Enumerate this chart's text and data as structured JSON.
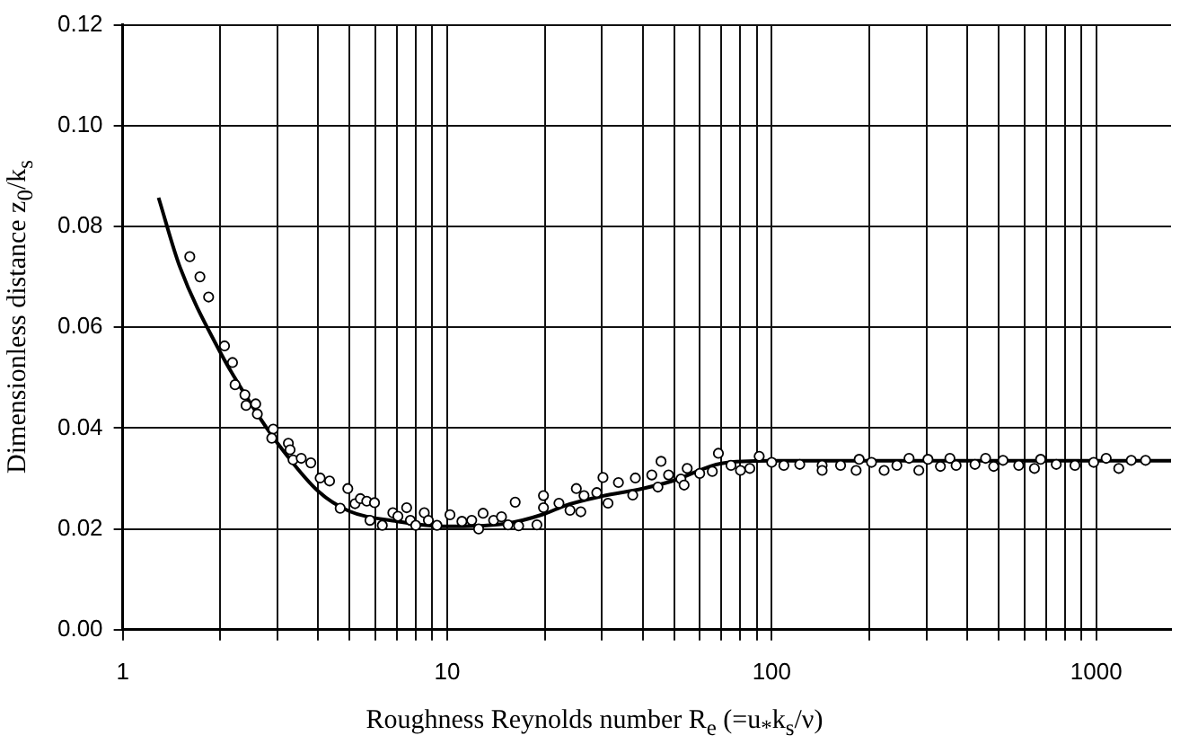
{
  "chart_data": {
    "type": "scatter",
    "xlabel": "Roughness Reynolds number R$_{e}$ (=u$_{*}$k$_{s}$/ν)",
    "ylabel": "Dimensionless distance  z$_{0}$/k$_{s}$",
    "log": "x",
    "grid": true,
    "xlim": [
      1,
      1700
    ],
    "ylim": [
      0,
      0.12
    ],
    "xticks": [
      1,
      {
        "value": 2,
        "label": null
      },
      {
        "value": 3,
        "label": null
      },
      {
        "value": 4,
        "label": null
      },
      {
        "value": 5,
        "label": null
      },
      {
        "value": 6,
        "label": null
      },
      {
        "value": 7,
        "label": null
      },
      {
        "value": 8,
        "label": null
      },
      {
        "value": 9,
        "label": null
      },
      10,
      {
        "value": 20,
        "label": null
      },
      {
        "value": 30,
        "label": null
      },
      {
        "value": 40,
        "label": null
      },
      {
        "value": 50,
        "label": null
      },
      {
        "value": 60,
        "label": null
      },
      {
        "value": 70,
        "label": null
      },
      {
        "value": 80,
        "label": null
      },
      {
        "value": 90,
        "label": null
      },
      100,
      {
        "value": 200,
        "label": null
      },
      {
        "value": 300,
        "label": null
      },
      {
        "value": 400,
        "label": null
      },
      {
        "value": 500,
        "label": null
      },
      {
        "value": 600,
        "label": null
      },
      {
        "value": 700,
        "label": null
      },
      {
        "value": 800,
        "label": null
      },
      {
        "value": 900,
        "label": null
      },
      1000
    ],
    "yticks": [
      {
        "value": 0,
        "label": "0.00"
      },
      {
        "value": 0.02,
        "label": "0.02"
      },
      {
        "value": 0.04,
        "label": "0.04"
      },
      {
        "value": 0.06,
        "label": "0.06"
      },
      {
        "value": 0.08,
        "label": "0.08"
      },
      {
        "value": 0.1,
        "label": "0.10"
      },
      {
        "value": 0.12,
        "label": "0.12"
      }
    ],
    "series": [
      {
        "type": "scatter",
        "marker": "circle",
        "color": "#000000",
        "x": [
          1.61,
          1.73,
          1.84,
          2.06,
          2.18,
          2.22,
          2.38,
          2.4,
          2.57,
          2.6,
          2.91,
          2.88,
          3.24,
          3.28,
          3.35,
          3.55,
          3.8,
          4.06,
          4.34,
          4.68,
          4.94,
          5.2,
          5.4,
          5.65,
          5.78,
          5.97,
          6.31,
          6.8,
          7.05,
          7.5,
          7.7,
          8.0,
          8.5,
          8.75,
          9.3,
          10.2,
          11.1,
          11.9,
          12.5,
          12.9,
          13.9,
          14.7,
          15.4,
          16.2,
          16.6,
          18.9,
          19.8,
          19.8,
          22.1,
          23.9,
          25.0,
          25.8,
          26.4,
          28.9,
          30.2,
          31.3,
          33.7,
          37.3,
          38.0,
          42.7,
          44.6,
          45.6,
          48.1,
          52.5,
          53.7,
          54.9,
          60.0,
          65.6,
          68.5,
          74.9,
          80.1,
          85.6,
          91.5,
          100,
          109,
          122,
          143,
          143,
          163,
          182,
          186,
          203,
          222,
          243,
          265,
          284,
          303,
          331,
          354,
          370,
          423,
          456,
          483,
          516,
          577,
          645,
          674,
          753,
          860,
          982,
          1073,
          1173,
          1282,
          1419
        ],
        "values": [
          0.074,
          0.07,
          0.066,
          0.0563,
          0.053,
          0.0486,
          0.0466,
          0.0445,
          0.0448,
          0.0428,
          0.0398,
          0.038,
          0.037,
          0.0357,
          0.0337,
          0.034,
          0.0331,
          0.0301,
          0.0295,
          0.0241,
          0.028,
          0.025,
          0.026,
          0.0255,
          0.0217,
          0.0252,
          0.0207,
          0.0232,
          0.0225,
          0.0242,
          0.0217,
          0.0207,
          0.0232,
          0.0217,
          0.0207,
          0.0228,
          0.0215,
          0.0217,
          0.02,
          0.0231,
          0.0217,
          0.0224,
          0.0208,
          0.0253,
          0.0206,
          0.0208,
          0.0242,
          0.0266,
          0.0251,
          0.0237,
          0.028,
          0.0234,
          0.0266,
          0.0272,
          0.0302,
          0.0251,
          0.0292,
          0.0267,
          0.0301,
          0.0307,
          0.0283,
          0.0334,
          0.0307,
          0.0299,
          0.0287,
          0.032,
          0.031,
          0.0314,
          0.035,
          0.0326,
          0.0316,
          0.032,
          0.0344,
          0.0332,
          0.0326,
          0.0328,
          0.0326,
          0.0316,
          0.0326,
          0.0316,
          0.0338,
          0.0332,
          0.0316,
          0.0326,
          0.034,
          0.0316,
          0.0338,
          0.0324,
          0.034,
          0.0326,
          0.0328,
          0.034,
          0.0324,
          0.0336,
          0.0326,
          0.032,
          0.0338,
          0.0328,
          0.0326,
          0.0332,
          0.034,
          0.032,
          0.0336,
          0.0336
        ]
      },
      {
        "type": "line",
        "marker": "none",
        "color": "#000000",
        "x": [
          1.29,
          1.5,
          2,
          2.5,
          3,
          4,
          5,
          7,
          10,
          15,
          20,
          23,
          30,
          40,
          50,
          70,
          100,
          200,
          500,
          1000,
          1700
        ],
        "values": [
          0.0857,
          0.072,
          0.055,
          0.0445,
          0.037,
          0.0275,
          0.0235,
          0.0215,
          0.0205,
          0.021,
          0.023,
          0.0246,
          0.0265,
          0.028,
          0.0296,
          0.033,
          0.0335,
          0.0335,
          0.0335,
          0.0335,
          0.0335
        ]
      }
    ]
  }
}
